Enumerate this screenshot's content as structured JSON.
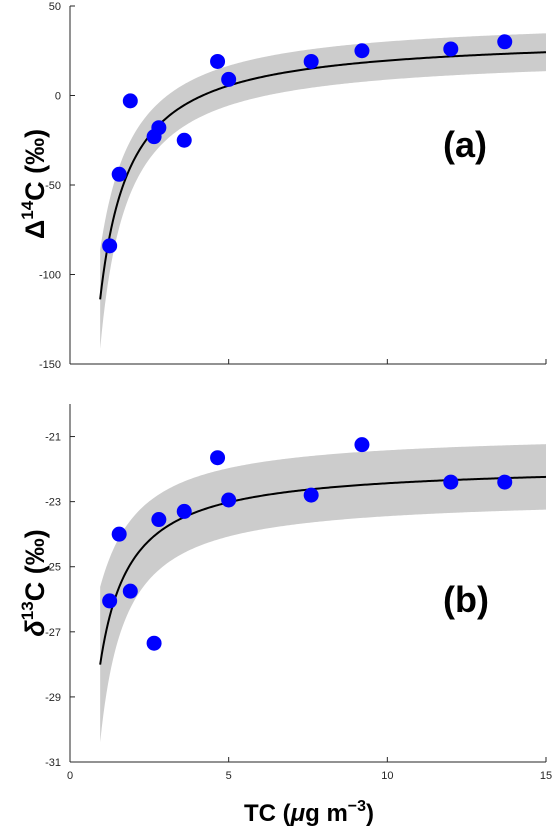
{
  "chart_data": [
    {
      "type": "scatter",
      "panel_label": "(a)",
      "ylabel": {
        "prefix": "Δ",
        "sup": "14",
        "rest": "C (‰)"
      },
      "xlim": [
        0,
        15
      ],
      "ylim": [
        -150,
        50
      ],
      "yticks": [
        50,
        0,
        -50,
        -100,
        -150
      ],
      "xtick_labels_shown": false,
      "grid": false,
      "points": [
        {
          "x": 1.25,
          "y": -84
        },
        {
          "x": 1.55,
          "y": -44
        },
        {
          "x": 1.9,
          "y": -3
        },
        {
          "x": 2.65,
          "y": -23
        },
        {
          "x": 2.8,
          "y": -18
        },
        {
          "x": 3.6,
          "y": -25
        },
        {
          "x": 4.65,
          "y": 19
        },
        {
          "x": 5.0,
          "y": 9
        },
        {
          "x": 7.6,
          "y": 19
        },
        {
          "x": 9.2,
          "y": 25
        },
        {
          "x": 12.0,
          "y": 26
        },
        {
          "x": 13.7,
          "y": 30
        }
      ],
      "fit": {
        "asymptote": 33.5,
        "coef": -140,
        "x_start": 0.95,
        "x_end": 15
      },
      "band": {
        "halfwidth_at_x1": 26,
        "halfwidth_far": 10.5
      },
      "colors": {
        "points": "#0000ff",
        "fit": "#000000",
        "band": "#cccccc"
      }
    },
    {
      "type": "scatter",
      "panel_label": "(b)",
      "ylabel": {
        "prefix": "δ",
        "sup": "13",
        "rest": "C (‰)"
      },
      "xlim": [
        0,
        15
      ],
      "ylim": [
        -31,
        -20
      ],
      "yticks": [
        -21,
        -23,
        -25,
        -27,
        -29,
        -31
      ],
      "xticks": [
        0,
        5,
        10,
        15
      ],
      "xlabel": {
        "prefix": "TC (",
        "mu": "μ",
        "unit": "g m",
        "sup": "−3",
        "close": ")"
      },
      "grid": false,
      "points": [
        {
          "x": 1.25,
          "y": -26.05
        },
        {
          "x": 1.55,
          "y": -24.0
        },
        {
          "x": 1.9,
          "y": -25.75
        },
        {
          "x": 2.65,
          "y": -27.35
        },
        {
          "x": 2.8,
          "y": -23.55
        },
        {
          "x": 3.6,
          "y": -23.3
        },
        {
          "x": 4.65,
          "y": -21.65
        },
        {
          "x": 5.0,
          "y": -22.95
        },
        {
          "x": 7.6,
          "y": -22.8
        },
        {
          "x": 9.2,
          "y": -21.25
        },
        {
          "x": 12.0,
          "y": -22.4
        },
        {
          "x": 13.7,
          "y": -22.4
        }
      ],
      "fit": {
        "asymptote": -21.85,
        "coef": -5.85,
        "x_start": 0.95,
        "x_end": 15
      },
      "band": {
        "halfwidth_at_x1": 2.25,
        "halfwidth_far": 1.0
      },
      "colors": {
        "points": "#0000ff",
        "fit": "#000000",
        "band": "#cccccc"
      }
    }
  ]
}
